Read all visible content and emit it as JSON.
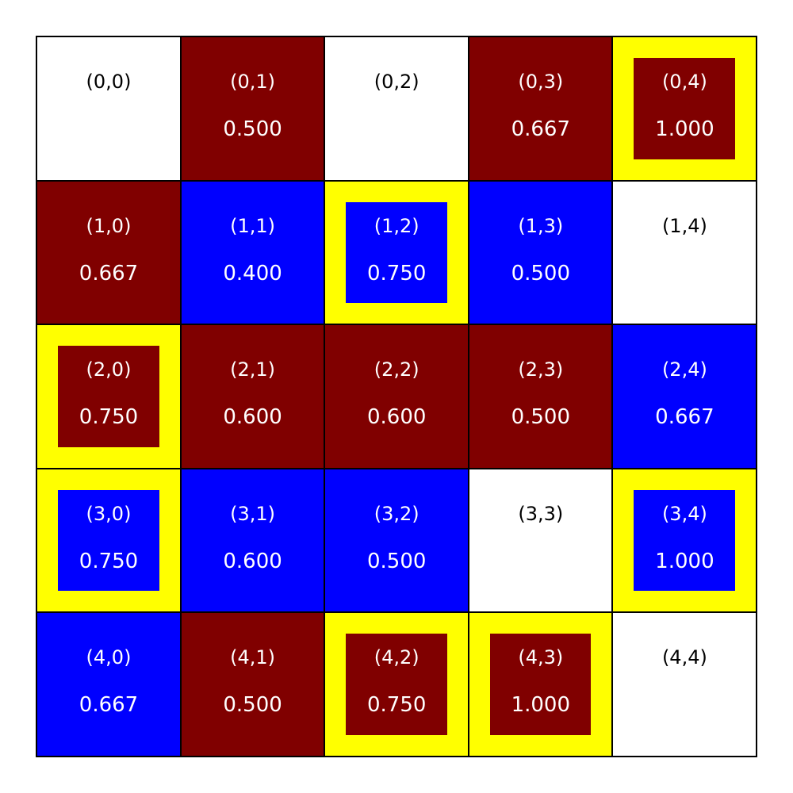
{
  "colors": {
    "red": "#800000",
    "blue": "#0000ff",
    "empty": "#ffffff",
    "highlight": "#ffff00",
    "text_light": "#ffffff",
    "text_dark": "#000000"
  },
  "grid": {
    "rows": 5,
    "cols": 5,
    "cells": [
      {
        "label": "(0,0)",
        "value": "",
        "color": "empty",
        "highlighted": false
      },
      {
        "label": "(0,1)",
        "value": "0.500",
        "color": "red",
        "highlighted": false
      },
      {
        "label": "(0,2)",
        "value": "",
        "color": "empty",
        "highlighted": false
      },
      {
        "label": "(0,3)",
        "value": "0.667",
        "color": "red",
        "highlighted": false
      },
      {
        "label": "(0,4)",
        "value": "1.000",
        "color": "red",
        "highlighted": true
      },
      {
        "label": "(1,0)",
        "value": "0.667",
        "color": "red",
        "highlighted": false
      },
      {
        "label": "(1,1)",
        "value": "0.400",
        "color": "blue",
        "highlighted": false
      },
      {
        "label": "(1,2)",
        "value": "0.750",
        "color": "blue",
        "highlighted": true
      },
      {
        "label": "(1,3)",
        "value": "0.500",
        "color": "blue",
        "highlighted": false
      },
      {
        "label": "(1,4)",
        "value": "",
        "color": "empty",
        "highlighted": false
      },
      {
        "label": "(2,0)",
        "value": "0.750",
        "color": "red",
        "highlighted": true
      },
      {
        "label": "(2,1)",
        "value": "0.600",
        "color": "red",
        "highlighted": false
      },
      {
        "label": "(2,2)",
        "value": "0.600",
        "color": "red",
        "highlighted": false
      },
      {
        "label": "(2,3)",
        "value": "0.500",
        "color": "red",
        "highlighted": false
      },
      {
        "label": "(2,4)",
        "value": "0.667",
        "color": "blue",
        "highlighted": false
      },
      {
        "label": "(3,0)",
        "value": "0.750",
        "color": "blue",
        "highlighted": true
      },
      {
        "label": "(3,1)",
        "value": "0.600",
        "color": "blue",
        "highlighted": false
      },
      {
        "label": "(3,2)",
        "value": "0.500",
        "color": "blue",
        "highlighted": false
      },
      {
        "label": "(3,3)",
        "value": "",
        "color": "empty",
        "highlighted": false
      },
      {
        "label": "(3,4)",
        "value": "1.000",
        "color": "blue",
        "highlighted": true
      },
      {
        "label": "(4,0)",
        "value": "0.667",
        "color": "blue",
        "highlighted": false
      },
      {
        "label": "(4,1)",
        "value": "0.500",
        "color": "red",
        "highlighted": false
      },
      {
        "label": "(4,2)",
        "value": "0.750",
        "color": "red",
        "highlighted": true
      },
      {
        "label": "(4,3)",
        "value": "1.000",
        "color": "red",
        "highlighted": true
      },
      {
        "label": "(4,4)",
        "value": "",
        "color": "empty",
        "highlighted": false
      }
    ]
  }
}
